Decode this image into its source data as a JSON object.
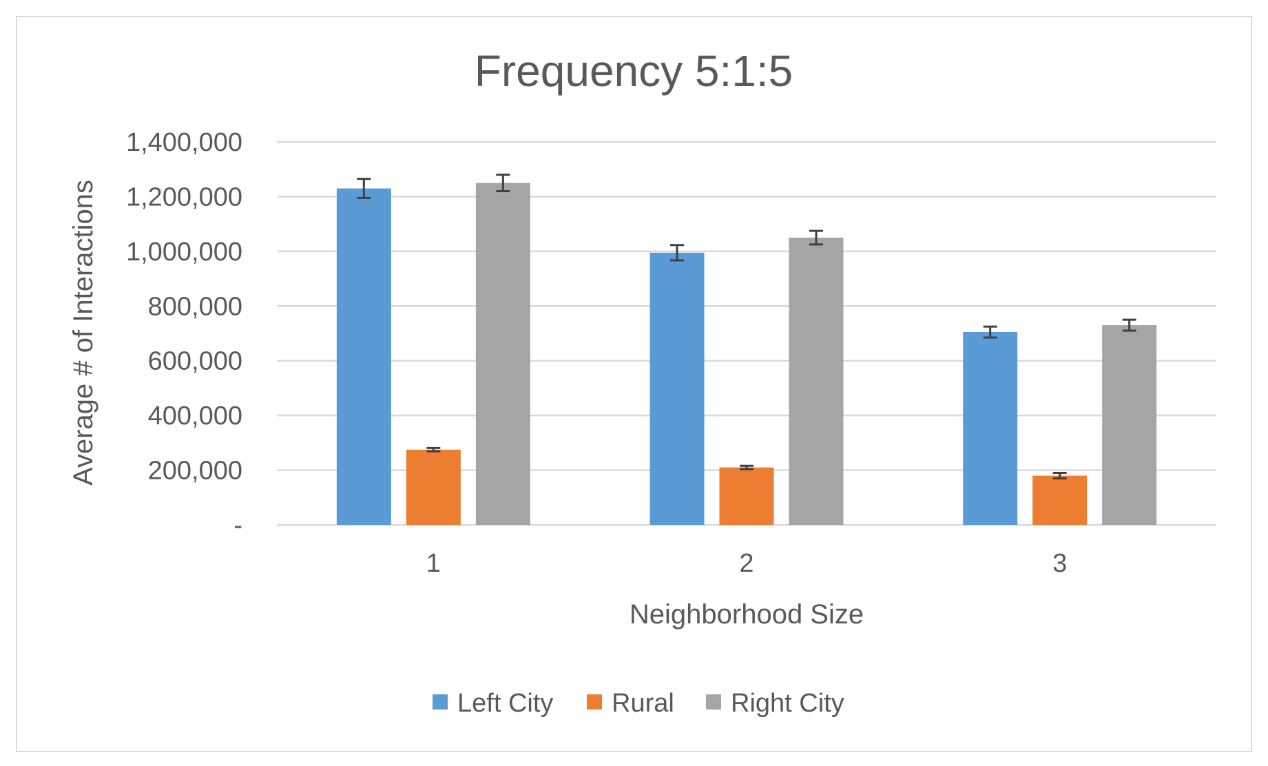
{
  "chart_data": {
    "type": "bar",
    "title": "Frequency 5:1:5",
    "xlabel": "Neighborhood Size",
    "ylabel": "Average # of Interactions",
    "categories": [
      "1",
      "2",
      "3"
    ],
    "ylim": [
      0,
      1400000
    ],
    "yticks": [
      0,
      200000,
      400000,
      600000,
      800000,
      1000000,
      1200000,
      1400000
    ],
    "ytick_labels": [
      "-",
      "200,000",
      "400,000",
      "600,000",
      "800,000",
      "1,000,000",
      "1,200,000",
      "1,400,000"
    ],
    "grid": true,
    "legend_position": "bottom",
    "series": [
      {
        "name": "Left City",
        "color": "#5b9bd5",
        "values": [
          1230000,
          995000,
          705000
        ],
        "errors": [
          35000,
          28000,
          20000
        ]
      },
      {
        "name": "Rural",
        "color": "#ed7d31",
        "values": [
          275000,
          210000,
          180000
        ],
        "errors": [
          6000,
          6000,
          10000
        ]
      },
      {
        "name": "Right City",
        "color": "#a5a5a5",
        "values": [
          1250000,
          1050000,
          730000
        ],
        "errors": [
          30000,
          25000,
          20000
        ]
      }
    ]
  }
}
